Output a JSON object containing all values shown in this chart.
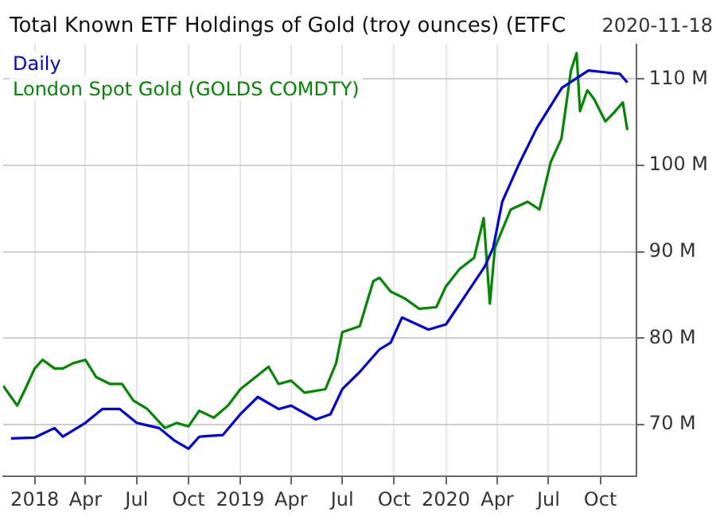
{
  "chart_data": {
    "type": "line",
    "title": "Total Known ETF Holdings of Gold (troy ounces) (ETFC",
    "annotations": [
      "2020-11-18"
    ],
    "xlim": [
      "2017-11-06",
      "2020-12-04"
    ],
    "xticks": [
      {
        "value": "2018-01-01",
        "label": "2018"
      },
      {
        "value": "2018-04-01",
        "label": "Apr"
      },
      {
        "value": "2018-07-01",
        "label": "Jul"
      },
      {
        "value": "2018-10-01",
        "label": "Oct"
      },
      {
        "value": "2019-01-01",
        "label": "2019"
      },
      {
        "value": "2019-04-01",
        "label": "Apr"
      },
      {
        "value": "2019-07-01",
        "label": "Jul"
      },
      {
        "value": "2019-10-01",
        "label": "Oct"
      },
      {
        "value": "2020-01-01",
        "label": "2020"
      },
      {
        "value": "2020-04-01",
        "label": "Apr"
      },
      {
        "value": "2020-07-01",
        "label": "Jul"
      },
      {
        "value": "2020-10-01",
        "label": "Oct"
      }
    ],
    "ylim": [
      64,
      114
    ],
    "yticks": [
      {
        "value": 70,
        "label": "70 M"
      },
      {
        "value": 80,
        "label": "80 M"
      },
      {
        "value": 90,
        "label": "90 M"
      },
      {
        "value": 100,
        "label": "100 M"
      },
      {
        "value": 110,
        "label": "110 M"
      }
    ],
    "grid": true,
    "legend": "top left",
    "marker": "none",
    "line_style": "solid",
    "series": [
      {
        "name": "Daily",
        "color": "#0000dd",
        "x": [
          "2017-11-20",
          "2018-01-01",
          "2018-02-05",
          "2018-02-20",
          "2018-04-01",
          "2018-05-01",
          "2018-06-01",
          "2018-07-01",
          "2018-08-10",
          "2018-09-05",
          "2018-10-01",
          "2018-10-20",
          "2018-12-01",
          "2019-01-01",
          "2019-02-01",
          "2019-03-10",
          "2019-04-01",
          "2019-05-15",
          "2019-06-10",
          "2019-07-01",
          "2019-08-01",
          "2019-09-05",
          "2019-09-25",
          "2019-10-15",
          "2019-12-01",
          "2020-01-01",
          "2020-02-05",
          "2020-03-10",
          "2020-03-25",
          "2020-04-10",
          "2020-05-10",
          "2020-06-10",
          "2020-07-25",
          "2020-09-10",
          "2020-11-05",
          "2020-11-18"
        ],
        "values": [
          68.4,
          68.5,
          69.6,
          68.6,
          70.2,
          71.8,
          71.8,
          70.2,
          69.6,
          68.2,
          67.2,
          68.6,
          68.8,
          71.2,
          73.2,
          71.8,
          72.2,
          70.6,
          71.2,
          74.1,
          76.1,
          78.7,
          79.5,
          82.4,
          81.0,
          81.6,
          85.0,
          88.3,
          90.5,
          95.8,
          100.2,
          104.3,
          109.0,
          111.0,
          110.6,
          109.6
        ]
      },
      {
        "name": "London Spot Gold (GOLDS COMDTY)",
        "color": "#008800",
        "x": [
          "2017-11-06",
          "2017-12-01",
          "2017-12-15",
          "2018-01-01",
          "2018-01-15",
          "2018-02-05",
          "2018-02-20",
          "2018-03-10",
          "2018-04-01",
          "2018-04-20",
          "2018-05-15",
          "2018-06-05",
          "2018-06-25",
          "2018-07-20",
          "2018-08-20",
          "2018-09-10",
          "2018-10-01",
          "2018-10-20",
          "2018-11-15",
          "2018-12-10",
          "2019-01-01",
          "2019-02-01",
          "2019-02-20",
          "2019-03-10",
          "2019-04-01",
          "2019-04-25",
          "2019-06-01",
          "2019-06-20",
          "2019-07-01",
          "2019-08-01",
          "2019-08-25",
          "2019-09-05",
          "2019-09-25",
          "2019-10-20",
          "2019-11-15",
          "2019-12-15",
          "2020-01-01",
          "2020-01-25",
          "2020-02-20",
          "2020-03-08",
          "2020-03-19",
          "2020-03-28",
          "2020-04-25",
          "2020-05-25",
          "2020-06-15",
          "2020-07-05",
          "2020-07-24",
          "2020-08-10",
          "2020-08-20",
          "2020-08-26",
          "2020-09-08",
          "2020-09-20",
          "2020-10-10",
          "2020-10-25",
          "2020-11-10",
          "2020-11-18"
        ],
        "values": [
          74.5,
          72.2,
          74.1,
          76.5,
          77.5,
          76.5,
          76.5,
          77.1,
          77.5,
          75.5,
          74.7,
          74.7,
          72.8,
          71.8,
          69.6,
          70.2,
          69.8,
          71.6,
          70.8,
          72.2,
          74.1,
          75.7,
          76.7,
          74.7,
          75.1,
          73.7,
          74.1,
          77.1,
          80.7,
          81.4,
          86.6,
          87.0,
          85.4,
          84.6,
          83.4,
          83.6,
          86.0,
          88.0,
          89.3,
          93.9,
          84.0,
          90.5,
          94.9,
          95.8,
          94.9,
          100.4,
          103.1,
          111.0,
          113.0,
          106.3,
          108.7,
          107.7,
          105.1,
          106.1,
          107.3,
          104.1
        ]
      }
    ]
  }
}
